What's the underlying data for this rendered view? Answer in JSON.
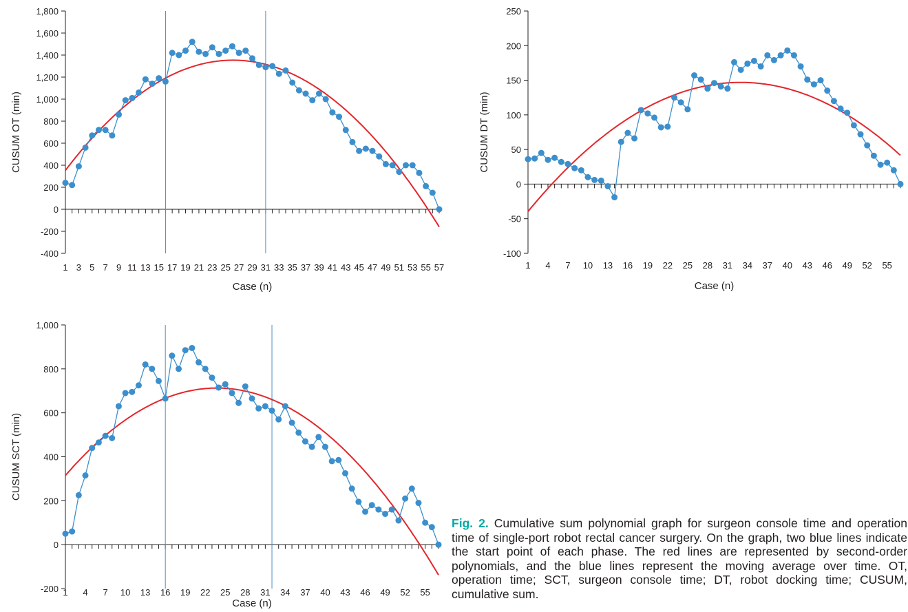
{
  "charts": [
    {
      "type": "line",
      "ylabel": "CUSUM OT (min)",
      "xlabel": "Case (n)",
      "xlim": [
        1,
        57
      ],
      "ylim": [
        -400,
        1800
      ],
      "yticks": [
        "1,800",
        "1,600",
        "1,400",
        "1,200",
        "1,000",
        "800",
        "600",
        "400",
        "200",
        "0",
        "-200",
        "-400"
      ],
      "ytick_values": [
        1800,
        1600,
        1400,
        1200,
        1000,
        800,
        600,
        400,
        200,
        0,
        -200,
        -400
      ],
      "xticks": [
        "1",
        "3",
        "5",
        "7",
        "9",
        "11",
        "13",
        "15",
        "17",
        "19",
        "21",
        "23",
        "25",
        "27",
        "29",
        "31",
        "33",
        "35",
        "37",
        "39",
        "41",
        "43",
        "45",
        "47",
        "49",
        "51",
        "53",
        "55",
        "57"
      ],
      "phase_lines": [
        16,
        31
      ],
      "series": [
        {
          "values": [
            240,
            220,
            390,
            560,
            670,
            720,
            720,
            670,
            860,
            990,
            1010,
            1060,
            1180,
            1140,
            1190,
            1160,
            1420,
            1400,
            1440,
            1520,
            1430,
            1410,
            1470,
            1410,
            1440,
            1480,
            1420,
            1440,
            1370,
            1310,
            1290,
            1300,
            1230,
            1260,
            1150,
            1080,
            1050,
            990,
            1050,
            1000,
            880,
            840,
            720,
            610,
            530,
            550,
            530,
            480,
            410,
            400,
            340,
            400,
            400,
            330,
            210,
            150,
            0
          ]
        }
      ],
      "fit": [
        340,
        -2.45
      ]
    },
    {
      "type": "line",
      "ylabel": "CUSUM DT (min)",
      "xlabel": "Case (n)",
      "xlim": [
        1,
        57
      ],
      "ylim": [
        -100,
        250
      ],
      "yticks": [
        "250",
        "200",
        "150",
        "100",
        "50",
        "0",
        "-50",
        "-100"
      ],
      "ytick_values": [
        250,
        200,
        150,
        100,
        50,
        0,
        -50,
        -100
      ],
      "xticks": [
        "1",
        "4",
        "7",
        "10",
        "13",
        "16",
        "19",
        "22",
        "25",
        "28",
        "31",
        "34",
        "37",
        "40",
        "43",
        "46",
        "49",
        "52",
        "55"
      ],
      "phase_lines": [],
      "series": [
        {
          "values": [
            36,
            37,
            45,
            35,
            38,
            32,
            29,
            23,
            20,
            10,
            6,
            5,
            -3,
            -19,
            61,
            74,
            66,
            107,
            102,
            96,
            82,
            83,
            125,
            118,
            108,
            157,
            151,
            138,
            146,
            141,
            138,
            176,
            165,
            174,
            178,
            170,
            186,
            179,
            186,
            193,
            186,
            170,
            151,
            144,
            150,
            135,
            120,
            109,
            103,
            85,
            72,
            56,
            41,
            28,
            31,
            20,
            0
          ]
        }
      ],
      "fit": [
        -40,
        0.0
      ]
    },
    {
      "type": "line",
      "ylabel": "CUSUM SCT (min)",
      "xlabel": "Case (n)",
      "xlim": [
        1,
        57
      ],
      "ylim": [
        -200,
        1000
      ],
      "yticks": [
        "1,000",
        "800",
        "600",
        "400",
        "200",
        "0",
        "-200"
      ],
      "ytick_values": [
        1000,
        800,
        600,
        400,
        200,
        0,
        -200
      ],
      "xticks": [
        "1",
        "4",
        "7",
        "10",
        "13",
        "16",
        "19",
        "22",
        "25",
        "28",
        "31",
        "34",
        "37",
        "40",
        "43",
        "46",
        "49",
        "52",
        "55"
      ],
      "phase_lines": [
        16,
        32
      ],
      "series": [
        {
          "values": [
            50,
            60,
            225,
            315,
            440,
            465,
            495,
            485,
            630,
            690,
            695,
            725,
            820,
            800,
            745,
            665,
            860,
            800,
            885,
            895,
            830,
            800,
            760,
            715,
            730,
            690,
            645,
            720,
            665,
            620,
            630,
            610,
            570,
            630,
            555,
            510,
            470,
            445,
            490,
            445,
            380,
            385,
            325,
            255,
            195,
            150,
            180,
            160,
            140,
            160,
            110,
            210,
            255,
            190,
            100,
            80,
            0
          ]
        }
      ],
      "fit": [
        310,
        -1.8
      ]
    }
  ],
  "caption": {
    "label": "Fig. 2.",
    "text": "Cumulative sum polynomial graph for surgeon console time and operation time of single-port robot rectal cancer surgery. On the graph, two blue lines indicate the start point of each phase. The red lines are represented by second-order polynomials, and the blue lines represent the moving average over time. OT, operation time; SCT, surgeon console time; DT, robot docking time; CUSUM, cumulative sum."
  },
  "colors": {
    "series": "#3c8fcc",
    "fit": "#e3262b",
    "phase": "#4a90c8",
    "axis": "#231f20"
  }
}
